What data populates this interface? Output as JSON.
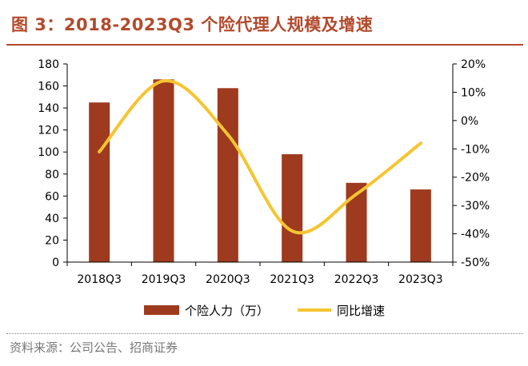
{
  "title": "图 3：2018-2023Q3 个险代理人规模及增速",
  "source": "资料来源：公司公告、招商证券",
  "chart_data": {
    "type": "bar+line",
    "categories": [
      "2018Q3",
      "2019Q3",
      "2020Q3",
      "2021Q3",
      "2022Q3",
      "2023Q3"
    ],
    "series": [
      {
        "name": "个险人力（万）",
        "type": "bar",
        "axis": "left",
        "color": "#9e3a1e",
        "values": [
          145,
          166,
          158,
          98,
          72,
          66
        ]
      },
      {
        "name": "同比增速",
        "type": "line",
        "axis": "right",
        "color": "#f5c531",
        "values": [
          -11,
          14,
          -5,
          -39,
          -26,
          -8
        ]
      }
    ],
    "left_axis": {
      "min": 0,
      "max": 180,
      "step": 20
    },
    "right_axis": {
      "min": -50,
      "max": 20,
      "step": 10,
      "unit": "%"
    },
    "grid": false,
    "legend_position": "bottom"
  }
}
